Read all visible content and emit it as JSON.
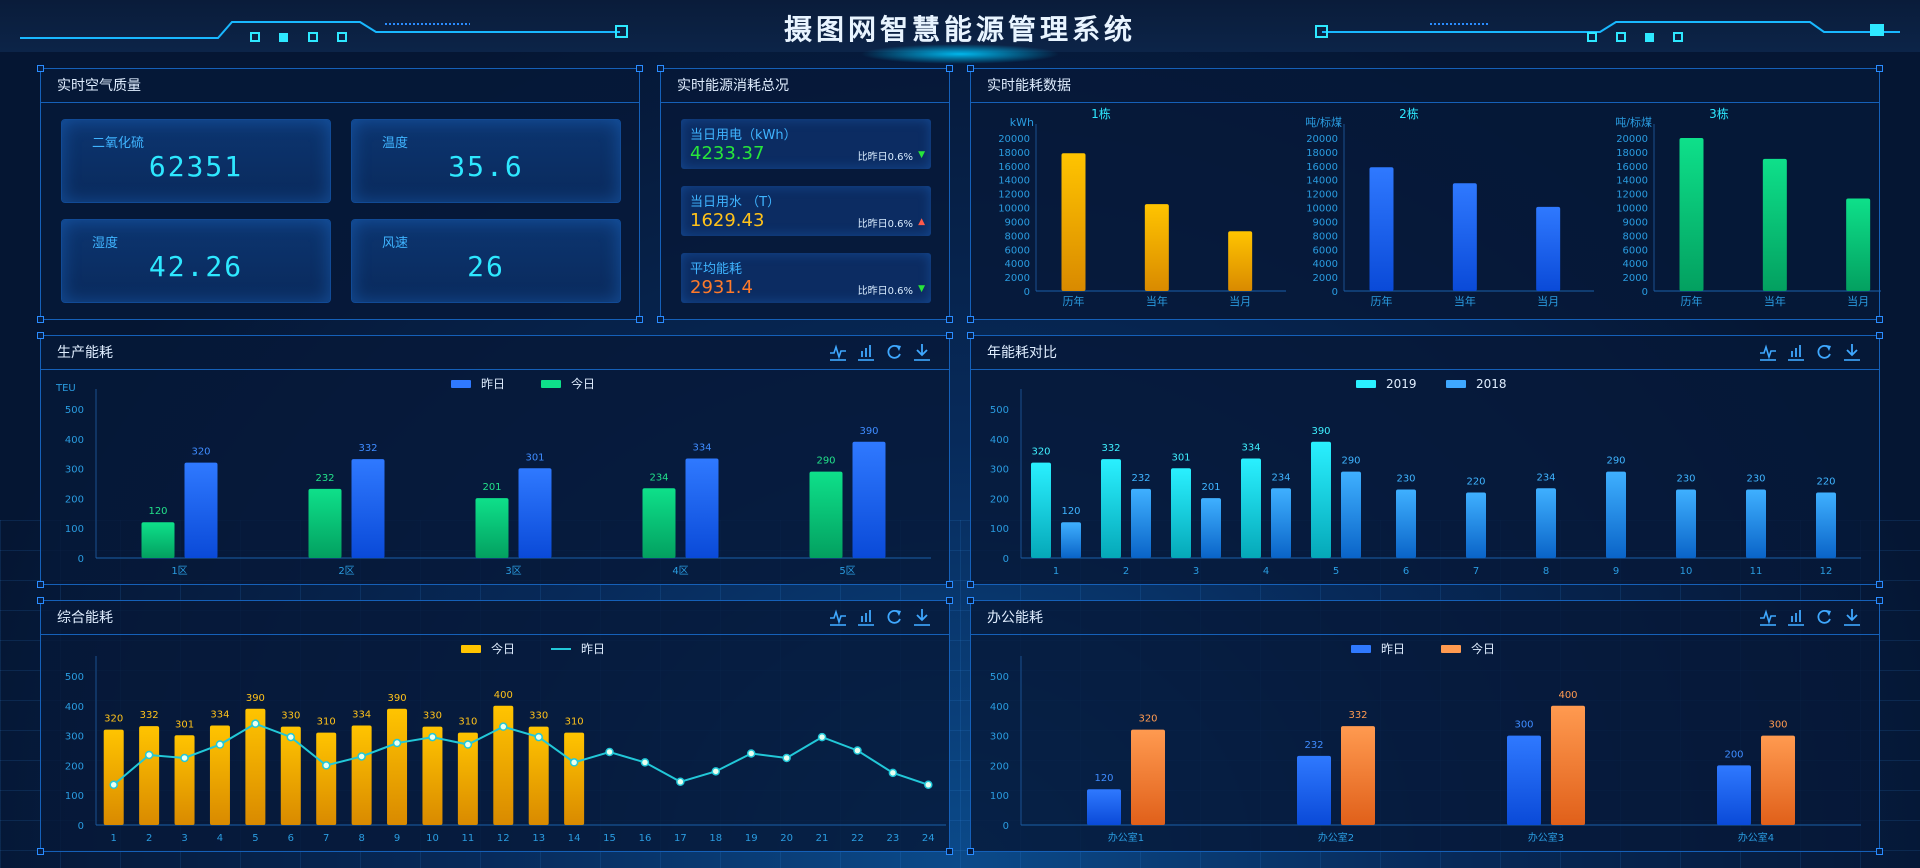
{
  "header": {
    "title": "摄图网智慧能源管理系统"
  },
  "air": {
    "title": "实时空气质量",
    "cards": [
      {
        "label": "二氧化硫",
        "value": "62351"
      },
      {
        "label": "温度",
        "value": "35.6"
      },
      {
        "label": "湿度",
        "value": "42.26"
      },
      {
        "label": "风速",
        "value": "26"
      }
    ]
  },
  "overview": {
    "title": "实时能源消耗总况",
    "cards": [
      {
        "label": "当日用电（kWh）",
        "value": "4233.37",
        "value_color": "#27e63a",
        "compare": "比昨日0.6%",
        "trend": "down",
        "trend_color": "#27e63a"
      },
      {
        "label": "当日用水 （T）",
        "value": "1629.43",
        "value_color": "#ffc21a",
        "compare": "比昨日0.6%",
        "trend": "up",
        "trend_color": "#ff5a4a"
      },
      {
        "label": "平均能耗",
        "value": "2931.4",
        "value_color": "#ff7a2a",
        "compare": "比昨日0.6%",
        "trend": "down",
        "trend_color": "#27e63a"
      }
    ]
  },
  "icons": [
    "line-chart-icon",
    "bar-chart-icon",
    "refresh-icon",
    "download-icon"
  ],
  "chart_data": [
    {
      "id": "buildings",
      "panel_title": "实时能耗数据",
      "type": "bar",
      "ticks": [
        0,
        2000,
        4000,
        6000,
        8000,
        9000,
        10000,
        12000,
        14000,
        16000,
        18000,
        20000
      ],
      "subcharts": [
        {
          "title": "1栋",
          "unit": "kWh",
          "categories": [
            "历年",
            "当年",
            "当月"
          ],
          "values": [
            17800,
            10500,
            8300
          ],
          "color": [
            "#ffc400",
            "#d98a00"
          ]
        },
        {
          "title": "2栋",
          "unit": "吨/标煤",
          "categories": [
            "历年",
            "当年",
            "当月"
          ],
          "values": [
            15800,
            13500,
            10100
          ],
          "color": [
            "#2f79ff",
            "#0a4ad8"
          ]
        },
        {
          "title": "3栋",
          "unit": "吨/标煤",
          "categories": [
            "历年",
            "当年",
            "当月"
          ],
          "values": [
            20000,
            17000,
            11300
          ],
          "color": [
            "#0ee08a",
            "#03a060"
          ]
        }
      ]
    },
    {
      "id": "production",
      "panel_title": "生产能耗",
      "type": "bar",
      "ylabel": "TEU",
      "ylim": [
        0,
        500
      ],
      "ticks": [
        0,
        100,
        200,
        300,
        400,
        500
      ],
      "categories": [
        "1区",
        "2区",
        "3区",
        "4区",
        "5区"
      ],
      "series": [
        {
          "name": "今日",
          "values": [
            120,
            232,
            201,
            234,
            290
          ],
          "color": [
            "#0ee08a",
            "#03a060"
          ],
          "label_color": "#22e08a"
        },
        {
          "name": "昨日",
          "values": [
            320,
            332,
            301,
            334,
            390
          ],
          "color": [
            "#2f79ff",
            "#0a4ad8"
          ],
          "label_color": "#3f8cff"
        }
      ],
      "legend": [
        {
          "name": "昨日",
          "color": "#2f79ff"
        },
        {
          "name": "今日",
          "color": "#0ee08a"
        }
      ]
    },
    {
      "id": "annual",
      "panel_title": "年能耗对比",
      "type": "bar",
      "ylim": [
        0,
        500
      ],
      "ticks": [
        0,
        100,
        200,
        300,
        400,
        500
      ],
      "categories": [
        "1",
        "2",
        "3",
        "4",
        "5",
        "6",
        "7",
        "8",
        "9",
        "10",
        "11",
        "12"
      ],
      "series": [
        {
          "name": "2019",
          "values": [
            320,
            332,
            301,
            334,
            390,
            null,
            null,
            null,
            null,
            null,
            null,
            null
          ],
          "color": [
            "#2af0ff",
            "#05a8b8"
          ],
          "label_color": "#3ff0ff"
        },
        {
          "name": "2018",
          "values": [
            120,
            232,
            201,
            234,
            290,
            230,
            220,
            234,
            290,
            230,
            230,
            220
          ],
          "color": [
            "#3fb0ff",
            "#0a64c8"
          ],
          "label_color": "#3fb4ff"
        }
      ],
      "legend": [
        {
          "name": "2019",
          "color": "#2af0ff"
        },
        {
          "name": "2018",
          "color": "#3fa8ff"
        }
      ]
    },
    {
      "id": "comprehensive",
      "panel_title": "综合能耗",
      "type": "bar+line",
      "ylim": [
        0,
        500
      ],
      "ticks": [
        0,
        100,
        200,
        300,
        400,
        500
      ],
      "categories": [
        "1",
        "2",
        "3",
        "4",
        "5",
        "6",
        "7",
        "8",
        "9",
        "10",
        "11",
        "12",
        "13",
        "14",
        "15",
        "16",
        "17",
        "18",
        "19",
        "20",
        "21",
        "22",
        "23",
        "24"
      ],
      "series": [
        {
          "name": "今日",
          "values": [
            320,
            332,
            301,
            334,
            390,
            330,
            310,
            334,
            390,
            330,
            310,
            400,
            330,
            310,
            null,
            null,
            null,
            null,
            null,
            null,
            null,
            null,
            null,
            null
          ],
          "color": [
            "#ffc400",
            "#d98a00"
          ],
          "label_color": "#ffc21a"
        }
      ],
      "line": {
        "name": "昨日",
        "values": [
          135,
          235,
          225,
          270,
          340,
          295,
          200,
          230,
          275,
          295,
          270,
          330,
          295,
          210,
          245,
          210,
          145,
          180,
          240,
          225,
          295,
          250,
          175,
          135
        ],
        "color": "#22c8d8"
      },
      "legend": [
        {
          "name": "今日",
          "color": "#ffc400",
          "kind": "bar"
        },
        {
          "name": "昨日",
          "color": "#22c8d8",
          "kind": "line"
        }
      ]
    },
    {
      "id": "office",
      "panel_title": "办公能耗",
      "type": "bar",
      "ylim": [
        0,
        500
      ],
      "ticks": [
        0,
        100,
        200,
        300,
        400,
        500
      ],
      "categories": [
        "办公室1",
        "办公室2",
        "办公室3",
        "办公室4"
      ],
      "series": [
        {
          "name": "昨日",
          "values": [
            120,
            232,
            300,
            200
          ],
          "color": [
            "#2f79ff",
            "#0a4ad8"
          ],
          "label_color": "#3f8cff"
        },
        {
          "name": "今日",
          "values": [
            320,
            332,
            400,
            300
          ],
          "color": [
            "#ff9a50",
            "#e0601a"
          ],
          "label_color": "#ff9a50"
        }
      ],
      "legend": [
        {
          "name": "昨日",
          "color": "#2f79ff"
        },
        {
          "name": "今日",
          "color": "#ff9a50"
        }
      ]
    }
  ]
}
